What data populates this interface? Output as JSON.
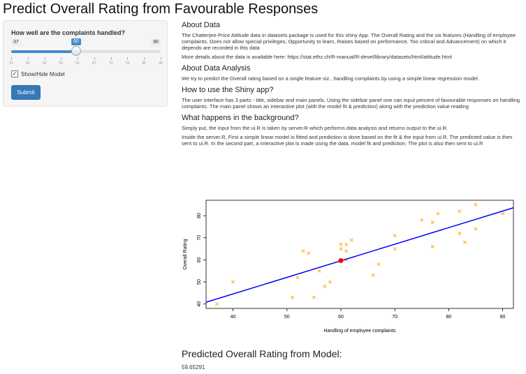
{
  "app": {
    "title": "Predict Overall Rating from Favourable Responses"
  },
  "sidebar": {
    "slider": {
      "label": "How well are the complaints handled?",
      "min": 37,
      "max": 90,
      "value": 60,
      "min_label": "37",
      "max_label": "90",
      "value_label": "60",
      "grid_labels": [
        "37",
        "43",
        "49",
        "55",
        "61",
        "67",
        "73",
        "79",
        "85",
        "90"
      ]
    },
    "checkbox": {
      "label": "Show/Hide Model",
      "checked": true,
      "check_glyph": "✓"
    },
    "submit_label": "Submit",
    "accent": "#428bca"
  },
  "main": {
    "about_data_title": "About Data",
    "about_data_p1": "The Chatterjee-Price Attitude data in datasets package is used for this shiny App. The Overall Rating and the six features (Handling of employee complaints, Does not allow special privileges, Opportunity to learn, Raises based on performance, Too critical and Advancement) on which it depends are recorded in this data",
    "about_data_p2": "More details about the data is available here: https://stat.ethz.ch/R-manual/R-devel/library/datasets/html/attitude.html",
    "about_analysis_title": "About Data Analysis",
    "about_analysis_p": "We try to predict the Overall rating based on a single feature viz., handling complaints by using a simple linear regression model.",
    "how_to_title": "How to use the Shiny app?",
    "how_to_p": "The user interface has 3 parts - title, sidebar and main panels. Using the sidebar panel one can input percent of favourable responses on handling complaints. The main panel shows an interactive plot (with the model fit & prediction) along with the prediction value reading",
    "background_title": "What happens in the background?",
    "background_p1": "Simply put, the input from the ui.R is taken by server.R which performs data analysis and returns output to the ui.R.",
    "background_p2": "Inside the server.R, First a simple linear model is fitted and prediction is done based on the fit & the input from ui.R. The predicted value is then sent to ui.R. In the second part, a interactive plot is made using the data, model fit and prediction. The plot is also then sent to ui.R",
    "prediction_title": "Predicted Overall Rating from Model:",
    "prediction_value": "59.65291"
  },
  "chart_data": {
    "type": "scatter",
    "xlabel": "Handling of employee complaints",
    "ylabel": "Overall Rating",
    "xlim": [
      35,
      92
    ],
    "ylim": [
      38,
      87
    ],
    "xticks": [
      40,
      50,
      60,
      70,
      80,
      90
    ],
    "yticks": [
      40,
      50,
      60,
      70,
      80
    ],
    "grid": false,
    "points": [
      [
        37,
        40
      ],
      [
        40,
        50
      ],
      [
        51,
        43
      ],
      [
        53,
        64
      ],
      [
        54,
        63
      ],
      [
        55,
        43
      ],
      [
        57,
        48
      ],
      [
        58,
        50
      ],
      [
        60,
        65
      ],
      [
        60,
        67
      ],
      [
        61,
        64
      ],
      [
        61,
        67
      ],
      [
        62,
        69
      ],
      [
        66,
        53
      ],
      [
        67,
        58
      ],
      [
        70,
        65
      ],
      [
        70,
        71
      ],
      [
        75,
        78
      ],
      [
        77,
        66
      ],
      [
        77,
        77
      ],
      [
        78,
        81
      ],
      [
        82,
        72
      ],
      [
        82,
        82
      ],
      [
        83,
        68
      ],
      [
        85,
        74
      ],
      [
        85,
        85
      ],
      [
        90,
        81
      ],
      [
        61,
        60
      ],
      [
        52,
        52
      ],
      [
        56,
        55
      ]
    ],
    "fit_line": {
      "x": [
        35,
        92
      ],
      "y": [
        40.8,
        83.6
      ]
    },
    "prediction": {
      "x": 60,
      "y": 59.65291
    },
    "colors": {
      "points": "#ffa500",
      "fit": "#0000ff",
      "prediction": "#ff0000"
    }
  }
}
